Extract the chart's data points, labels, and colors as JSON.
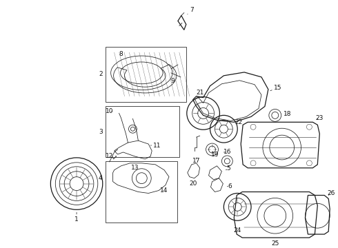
{
  "background_color": "#ffffff",
  "line_color": "#1a1a1a",
  "text_color": "#111111",
  "fig_width": 4.9,
  "fig_height": 3.6,
  "dpi": 100
}
